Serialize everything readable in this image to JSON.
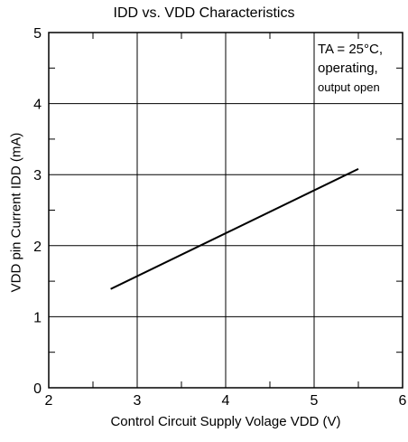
{
  "chart_data": {
    "type": "line",
    "title": "IDD vs. VDD Characteristics",
    "xlabel": "Control Circuit Supply Volage VDD (V)",
    "ylabel": "VDD pin Current IDD (mA)",
    "xlim": [
      2,
      6
    ],
    "ylim": [
      0,
      5
    ],
    "x_ticks": [
      "2",
      "3",
      "4",
      "5",
      "6"
    ],
    "y_ticks": [
      "0",
      "1",
      "2",
      "3",
      "4",
      "5"
    ],
    "grid": true,
    "annotation": [
      "TA = 25°C,",
      "operating,",
      "output open"
    ],
    "series": [
      {
        "x": [
          2.7,
          5.5
        ],
        "y": [
          1.39,
          3.08
        ]
      }
    ]
  }
}
